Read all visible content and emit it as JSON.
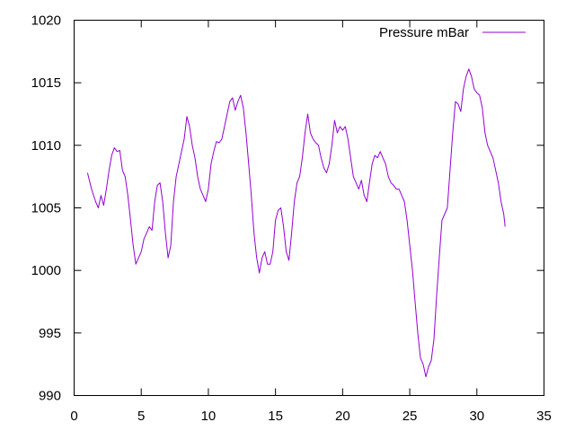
{
  "chart_data": {
    "type": "line",
    "title": "",
    "xlabel": "",
    "ylabel": "",
    "xlim": [
      0,
      35
    ],
    "ylim": [
      990,
      1020
    ],
    "x_ticks": [
      "0",
      "5",
      "10",
      "15",
      "20",
      "25",
      "30",
      "35"
    ],
    "y_ticks": [
      "990",
      "995",
      "1000",
      "1005",
      "1010",
      "1015",
      "1020"
    ],
    "grid": false,
    "legend_position": "top-right",
    "series": [
      {
        "name": "Pressure mBar",
        "color": "#9400d3",
        "points": [
          [
            1.0,
            1007.8
          ],
          [
            1.3,
            1006.5
          ],
          [
            1.6,
            1005.5
          ],
          [
            1.8,
            1005.0
          ],
          [
            2.0,
            1006.0
          ],
          [
            2.2,
            1005.2
          ],
          [
            2.4,
            1006.5
          ],
          [
            2.6,
            1008.0
          ],
          [
            2.8,
            1009.2
          ],
          [
            3.0,
            1009.8
          ],
          [
            3.2,
            1009.5
          ],
          [
            3.4,
            1009.6
          ],
          [
            3.6,
            1008.0
          ],
          [
            3.8,
            1007.5
          ],
          [
            4.0,
            1006.0
          ],
          [
            4.2,
            1004.0
          ],
          [
            4.4,
            1002.0
          ],
          [
            4.6,
            1000.5
          ],
          [
            4.8,
            1001.0
          ],
          [
            5.0,
            1001.5
          ],
          [
            5.2,
            1002.5
          ],
          [
            5.4,
            1003.0
          ],
          [
            5.6,
            1003.5
          ],
          [
            5.8,
            1003.2
          ],
          [
            6.0,
            1005.5
          ],
          [
            6.2,
            1006.8
          ],
          [
            6.4,
            1007.0
          ],
          [
            6.6,
            1005.5
          ],
          [
            6.8,
            1003.0
          ],
          [
            7.0,
            1001.0
          ],
          [
            7.2,
            1002.0
          ],
          [
            7.4,
            1005.5
          ],
          [
            7.6,
            1007.5
          ],
          [
            7.8,
            1008.5
          ],
          [
            8.0,
            1009.5
          ],
          [
            8.2,
            1010.5
          ],
          [
            8.4,
            1012.3
          ],
          [
            8.6,
            1011.5
          ],
          [
            8.8,
            1010.0
          ],
          [
            9.0,
            1009.0
          ],
          [
            9.2,
            1007.5
          ],
          [
            9.4,
            1006.5
          ],
          [
            9.6,
            1006.0
          ],
          [
            9.8,
            1005.5
          ],
          [
            10.0,
            1006.5
          ],
          [
            10.2,
            1008.5
          ],
          [
            10.4,
            1009.5
          ],
          [
            10.6,
            1010.3
          ],
          [
            10.8,
            1010.2
          ],
          [
            11.0,
            1010.5
          ],
          [
            11.2,
            1011.5
          ],
          [
            11.4,
            1012.5
          ],
          [
            11.6,
            1013.5
          ],
          [
            11.8,
            1013.8
          ],
          [
            12.0,
            1012.8
          ],
          [
            12.2,
            1013.5
          ],
          [
            12.4,
            1014.0
          ],
          [
            12.6,
            1013.0
          ],
          [
            12.8,
            1011.0
          ],
          [
            13.0,
            1008.5
          ],
          [
            13.2,
            1006.0
          ],
          [
            13.4,
            1003.0
          ],
          [
            13.6,
            1001.0
          ],
          [
            13.8,
            999.8
          ],
          [
            14.0,
            1001.0
          ],
          [
            14.2,
            1001.5
          ],
          [
            14.4,
            1000.5
          ],
          [
            14.6,
            1000.5
          ],
          [
            14.8,
            1001.5
          ],
          [
            15.0,
            1004.0
          ],
          [
            15.2,
            1004.8
          ],
          [
            15.4,
            1005.0
          ],
          [
            15.6,
            1003.5
          ],
          [
            15.8,
            1001.5
          ],
          [
            16.0,
            1000.8
          ],
          [
            16.2,
            1003.0
          ],
          [
            16.4,
            1005.5
          ],
          [
            16.6,
            1007.0
          ],
          [
            16.8,
            1007.5
          ],
          [
            17.0,
            1009.0
          ],
          [
            17.2,
            1011.0
          ],
          [
            17.4,
            1012.5
          ],
          [
            17.6,
            1011.0
          ],
          [
            17.8,
            1010.5
          ],
          [
            18.0,
            1010.2
          ],
          [
            18.2,
            1010.0
          ],
          [
            18.4,
            1009.0
          ],
          [
            18.6,
            1008.2
          ],
          [
            18.8,
            1007.8
          ],
          [
            19.0,
            1008.5
          ],
          [
            19.2,
            1010.0
          ],
          [
            19.4,
            1012.0
          ],
          [
            19.6,
            1011.0
          ],
          [
            19.8,
            1011.5
          ],
          [
            20.0,
            1011.2
          ],
          [
            20.2,
            1011.5
          ],
          [
            20.4,
            1010.5
          ],
          [
            20.6,
            1009.0
          ],
          [
            20.8,
            1007.5
          ],
          [
            21.0,
            1007.0
          ],
          [
            21.2,
            1006.5
          ],
          [
            21.4,
            1007.2
          ],
          [
            21.6,
            1006.0
          ],
          [
            21.8,
            1005.5
          ],
          [
            22.0,
            1007.0
          ],
          [
            22.2,
            1008.5
          ],
          [
            22.4,
            1009.2
          ],
          [
            22.6,
            1009.0
          ],
          [
            22.8,
            1009.5
          ],
          [
            23.0,
            1009.0
          ],
          [
            23.2,
            1008.5
          ],
          [
            23.4,
            1007.5
          ],
          [
            23.6,
            1007.0
          ],
          [
            23.8,
            1006.8
          ],
          [
            24.0,
            1006.5
          ],
          [
            24.2,
            1006.5
          ],
          [
            24.4,
            1006.0
          ],
          [
            24.6,
            1005.5
          ],
          [
            24.8,
            1004.0
          ],
          [
            25.0,
            1002.0
          ],
          [
            25.2,
            1000.0
          ],
          [
            25.4,
            997.5
          ],
          [
            25.6,
            995.0
          ],
          [
            25.8,
            993.0
          ],
          [
            26.0,
            992.5
          ],
          [
            26.2,
            991.5
          ],
          [
            26.4,
            992.3
          ],
          [
            26.6,
            992.8
          ],
          [
            26.8,
            994.5
          ],
          [
            27.0,
            998.0
          ],
          [
            27.2,
            1001.0
          ],
          [
            27.4,
            1004.0
          ],
          [
            27.6,
            1004.5
          ],
          [
            27.8,
            1005.0
          ],
          [
            28.0,
            1008.0
          ],
          [
            28.2,
            1011.0
          ],
          [
            28.4,
            1013.5
          ],
          [
            28.6,
            1013.3
          ],
          [
            28.8,
            1012.7
          ],
          [
            29.0,
            1014.5
          ],
          [
            29.2,
            1015.5
          ],
          [
            29.4,
            1016.1
          ],
          [
            29.6,
            1015.5
          ],
          [
            29.8,
            1014.5
          ],
          [
            30.0,
            1014.2
          ],
          [
            30.2,
            1014.0
          ],
          [
            30.4,
            1013.0
          ],
          [
            30.6,
            1011.0
          ],
          [
            30.8,
            1010.0
          ],
          [
            31.0,
            1009.5
          ],
          [
            31.2,
            1009.0
          ],
          [
            31.4,
            1008.0
          ],
          [
            31.6,
            1007.0
          ],
          [
            31.8,
            1005.5
          ],
          [
            32.0,
            1004.5
          ],
          [
            32.1,
            1003.5
          ]
        ]
      }
    ]
  }
}
